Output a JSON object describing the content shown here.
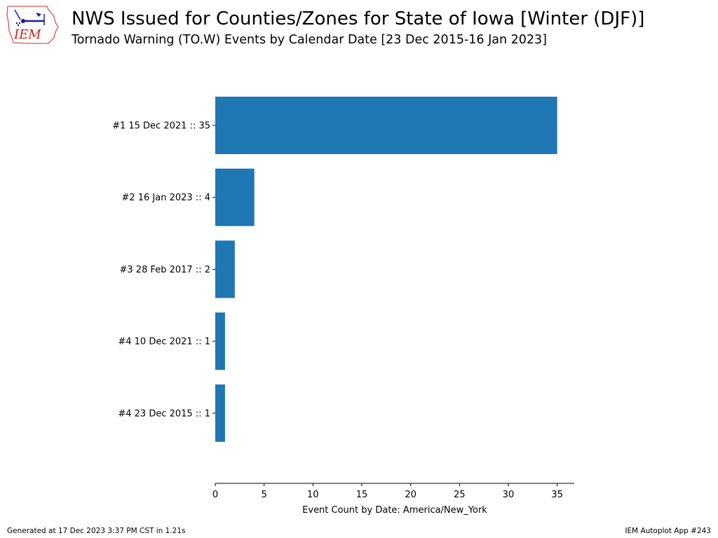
{
  "header": {
    "logo_text": "IEM",
    "title": "NWS Issued for Counties/Zones for State of Iowa [Winter (DJF)]",
    "subtitle": "Tornado Warning (TO.W) Events by Calendar Date [23 Dec 2015-16 Jan 2023]"
  },
  "footer": {
    "generated": "Generated at 17 Dec 2023 3:37 PM CST in 1.21s",
    "app": "IEM Autoplot App #243"
  },
  "colors": {
    "bar": "#1f77b4",
    "axis": "#000000"
  },
  "chart_data": {
    "type": "bar",
    "orientation": "horizontal",
    "categories": [
      "#1  15 Dec 2021 :: 35",
      "#2  16 Jan 2023 :: 4",
      "#3  28 Feb 2017 :: 2",
      "#4  10 Dec 2021 :: 1",
      "#4  23 Dec 2015 :: 1"
    ],
    "values": [
      35,
      4,
      2,
      1,
      1
    ],
    "xlabel": "Event Count by Date: America/New_York",
    "ylabel": "",
    "xlim": [
      0,
      36.75
    ],
    "xticks": [
      0,
      5,
      10,
      15,
      20,
      25,
      30,
      35
    ],
    "grid": false,
    "legend": "none"
  }
}
